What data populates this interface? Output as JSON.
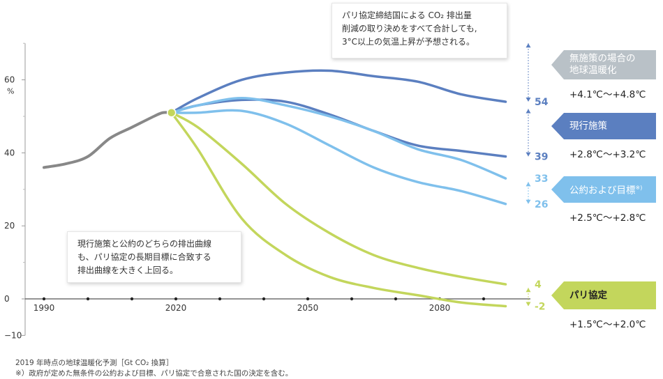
{
  "chart_data": {
    "type": "line",
    "ylabel_unit": "%",
    "ylim": [
      -10,
      70
    ],
    "xlim": [
      1990,
      2100
    ],
    "yticks": [
      "60",
      "40",
      "20",
      "0",
      "−10"
    ],
    "xticks": [
      "1990",
      "2020",
      "2050",
      "2080"
    ],
    "history": {
      "x": [
        1990,
        1995,
        2000,
        2005,
        2010,
        2015,
        2017,
        2019
      ],
      "values": [
        36,
        37,
        39,
        44,
        47,
        50,
        51,
        51
      ],
      "color": "#888888"
    },
    "start_point": {
      "x": 2019,
      "y": 51
    },
    "series": [
      {
        "x": [
          2019,
          2025,
          2035,
          2045,
          2055,
          2065,
          2075,
          2085,
          2095
        ],
        "values": [
          51,
          55,
          60,
          62,
          62.5,
          61,
          59.5,
          56,
          54
        ],
        "color": "#5b7fc0",
        "end_label": "54"
      },
      {
        "x": [
          2019,
          2025,
          2035,
          2045,
          2055,
          2065,
          2075,
          2085,
          2095
        ],
        "values": [
          51,
          53,
          54.5,
          54,
          50.5,
          46,
          42,
          40.5,
          39
        ],
        "color": "#5b7fc0",
        "end_label": "39"
      },
      {
        "x": [
          2019,
          2025,
          2035,
          2045,
          2055,
          2065,
          2075,
          2085,
          2095
        ],
        "values": [
          51,
          53,
          55,
          53,
          50,
          46,
          41,
          38,
          33
        ],
        "color": "#7fc0ec",
        "end_label": "33"
      },
      {
        "x": [
          2019,
          2025,
          2035,
          2045,
          2055,
          2065,
          2075,
          2085,
          2095
        ],
        "values": [
          51,
          51,
          51.5,
          48,
          42,
          36,
          32,
          29.5,
          26
        ],
        "color": "#7fc0ec",
        "end_label": "26"
      },
      {
        "x": [
          2019,
          2025,
          2035,
          2045,
          2055,
          2065,
          2075,
          2085,
          2095
        ],
        "values": [
          51,
          47,
          37,
          26,
          18,
          12,
          8.5,
          6,
          4
        ],
        "color": "#c3d65c",
        "end_label": "4"
      },
      {
        "x": [
          2019,
          2025,
          2035,
          2045,
          2055,
          2065,
          2075,
          2085,
          2095
        ],
        "values": [
          51,
          41,
          22,
          12,
          6,
          3,
          1,
          -1,
          -2
        ],
        "color": "#c3d65c",
        "end_label": "-2"
      }
    ],
    "grid": false
  },
  "annotations": {
    "top_note": [
      "パリ協定締結国による CO₂ 排出量",
      "削減の取り決めをすべて合計しても,",
      "3°C以上の気温上昇が予想される。"
    ],
    "mid_note": [
      "現行施策と公約のどちらの排出曲線",
      "も、パリ協定の長期目標に合致する",
      "排出曲線を大きく上回る。"
    ]
  },
  "scenarios": [
    {
      "label_lines": [
        "無施策の場合の",
        "地球温暖化"
      ],
      "range": "+4.1℃～+4.8℃",
      "color": "#b9c1c7"
    },
    {
      "label_lines": [
        "現行施策"
      ],
      "range": "+2.8℃～+3.2℃",
      "color": "#5b7fc0"
    },
    {
      "label_lines": [
        "公約および目標"
      ],
      "sup": "※)",
      "range": "+2.5℃～+2.8℃",
      "color": "#7fc0ec"
    },
    {
      "label_lines": [
        "パリ協定"
      ],
      "range": "+1.5℃～+2.0℃",
      "color": "#c3d65c",
      "dark_text": true
    }
  ],
  "footnotes": [
    "2019 年時点の地球温暖化予測［Gt CO₂ 換算］",
    "※）政府が定めた無条件の公約および目標、パリ協定で合意された国の決定を含む。"
  ]
}
